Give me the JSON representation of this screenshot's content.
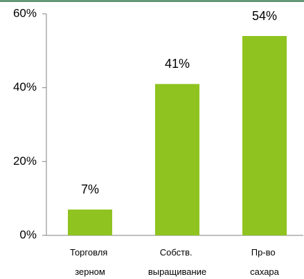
{
  "chart_data": {
    "type": "bar",
    "categories": [
      "Торговля зерном",
      "Собств. выращивание",
      "Пр-во сахара"
    ],
    "values": [
      7,
      41,
      54
    ],
    "value_labels": [
      "7%",
      "41%",
      "54%"
    ],
    "color": "#8fc31f",
    "ylim": [
      0,
      60
    ],
    "yticks": [
      {
        "value": 0,
        "label": "0%"
      },
      {
        "value": 20,
        "label": "20%"
      },
      {
        "value": 40,
        "label": "40%"
      },
      {
        "value": 60,
        "label": "60%"
      }
    ],
    "grid": false
  }
}
